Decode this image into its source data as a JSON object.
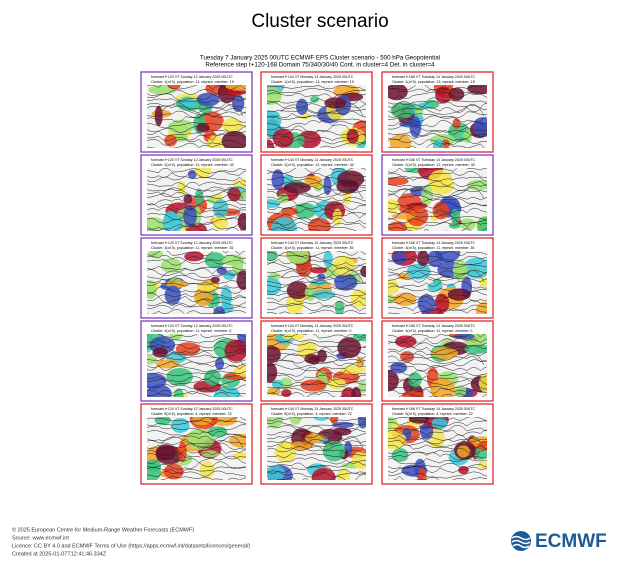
{
  "title": "Cluster scenario",
  "subtitle": [
    "Tuesday 7 January 2025 00UTC ECMWF EPS Cluster scenario - 500 hPa Geopotential",
    "Reference step t+120-168 Domain 75/340/30/40 Cont. in cluster=4 Det. in cluster=4"
  ],
  "panels": [
    [
      {
        "line1": "forecast t+120 VT Sunday 12 January 2025 00UTC",
        "line2": "Cluster: 1(of 5), population: 13, reprsnt. member: 19",
        "frame": "#7b3fbf"
      },
      {
        "line1": "forecast t+144 VT Monday 13 January 2025 00UTC",
        "line2": "Cluster: 1(of 5), population: 13, reprsnt. member: 19",
        "frame": "#e0282e"
      },
      {
        "line1": "forecast t+168 VT Tuesday 14 January 2025 00UTC",
        "line2": "Cluster: 1(of 5), population: 13, reprsnt. member: 19",
        "frame": "#e0282e"
      }
    ],
    [
      {
        "line1": "forecast t+120 VT Sunday 12 January 2025 00UTC",
        "line2": "Cluster: 2(of 5), population: 12, reprsnt. member: 40",
        "frame": "#7b3fbf"
      },
      {
        "line1": "forecast t+144 VT Monday 13 January 2025 00UTC",
        "line2": "Cluster: 2(of 5), population: 12, reprsnt. member: 40",
        "frame": "#e0282e"
      },
      {
        "line1": "forecast t+168 VT Tuesday 14 January 2025 00UTC",
        "line2": "Cluster: 2(of 5), population: 12, reprsnt. member: 40",
        "frame": "#7b3fbf"
      }
    ],
    [
      {
        "line1": "forecast t+120 VT Sunday 12 January 2025 00UTC",
        "line2": "Cluster: 3(of 5), population: 11, reprsnt. member: 35",
        "frame": "#7b3fbf"
      },
      {
        "line1": "forecast t+144 VT Monday 13 January 2025 00UTC",
        "line2": "Cluster: 3(of 5), population: 11, reprsnt. member: 35",
        "frame": "#e0282e"
      },
      {
        "line1": "forecast t+168 VT Tuesday 14 January 2025 00UTC",
        "line2": "Cluster: 3(of 5), population: 11, reprsnt. member: 35",
        "frame": "#e0282e"
      }
    ],
    [
      {
        "line1": "forecast t+120 VT Sunday 12 January 2025 00UTC",
        "line2": "Cluster: 4(of 5), population: 11, reprsnt. member: 0",
        "frame": "#7b3fbf"
      },
      {
        "line1": "forecast t+144 VT Monday 13 January 2025 00UTC",
        "line2": "Cluster: 4(of 5), population: 11, reprsnt. member: 0",
        "frame": "#e0282e"
      },
      {
        "line1": "forecast t+168 VT Tuesday 14 January 2025 00UTC",
        "line2": "Cluster: 4(of 5), population: 11, reprsnt. member: 0",
        "frame": "#e0282e"
      }
    ],
    [
      {
        "line1": "forecast t+120 VT Sunday 12 January 2025 00UTC",
        "line2": "Cluster: 5(of 5), population: 4, reprsnt. member: 22",
        "frame": "#e0282e"
      },
      {
        "line1": "forecast t+144 VT Monday 13 January 2025 00UTC",
        "line2": "Cluster: 5(of 5), population: 4, reprsnt. member: 22",
        "frame": "#e0282e"
      },
      {
        "line1": "forecast t+168 VT Tuesday 14 January 2025 00UTC",
        "line2": "Cluster: 5(of 5), population: 4, reprsnt. member: 22",
        "frame": "#e0282e"
      }
    ]
  ],
  "footer": [
    "© 2025 European Centre for Medium-Range Weather Forecasts (ECMWF)",
    "Source: www.ecmwf.int",
    "Licence: CC BY 4.0 and ECMWF Terms of Use (https://apps.ecmwf.int/datasets/licences/general/)",
    "Created at 2025-01-07T12:41:46.334Z"
  ],
  "logo": "ECMWF"
}
